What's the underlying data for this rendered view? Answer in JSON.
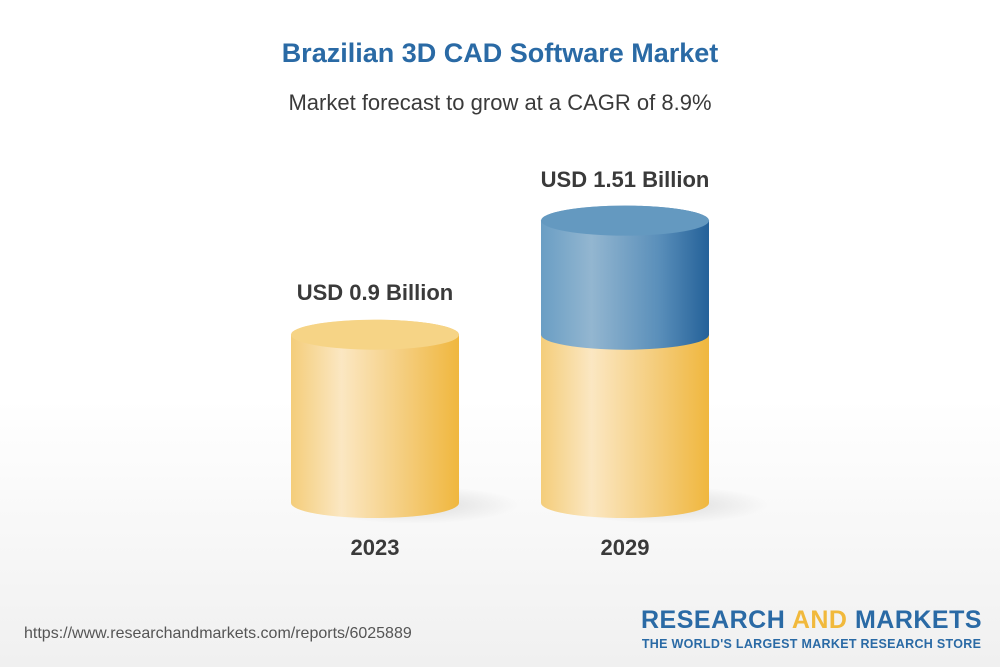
{
  "chart_data": {
    "type": "bar",
    "title": "Brazilian 3D CAD Software Market",
    "subtitle": "Market forecast to grow at a CAGR of 8.9%",
    "categories": [
      "2023",
      "2029"
    ],
    "values": [
      0.9,
      1.51
    ],
    "data_labels": [
      "USD 0.9 Billion",
      "USD 1.51 Billion"
    ],
    "unit": "USD Billion",
    "style": "3d-cylinder",
    "colors": {
      "base": "#f1b93c",
      "growth": "#2a6aa5",
      "title": "#2a6aa5"
    }
  },
  "footer": {
    "url": "https://www.researchandmarkets.com/reports/6025889",
    "logo_part1": "RESEARCH ",
    "logo_part2": "AND",
    "logo_part3": " MARKETS",
    "logo_tagline": "THE WORLD'S LARGEST MARKET RESEARCH STORE"
  }
}
